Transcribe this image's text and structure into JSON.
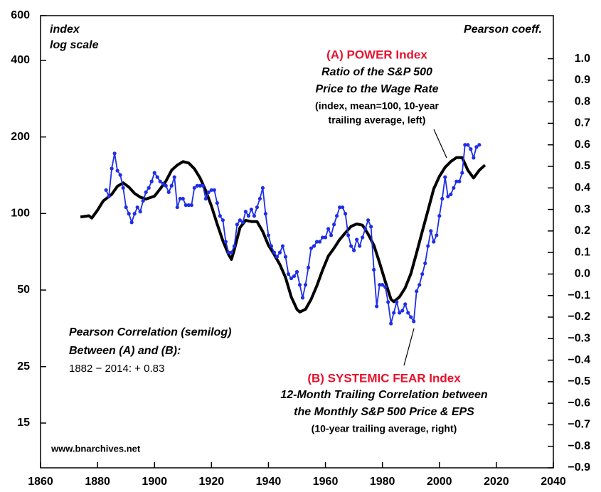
{
  "chart_data": {
    "type": "line",
    "ylabel_lines": [
      "index",
      "log scale"
    ],
    "y2label": "Pearson coeff.",
    "source": "www.bnarchives.net",
    "annotations": [
      {
        "lines": [
          "Ratio of the S&P 500",
          "Price to the Wage Rate",
          "(index, mean=100, 10-year",
          "trailing average, left)"
        ]
      },
      {
        "lines": [
          "12-Month Trailing Correlation between",
          "the Monthly S&P 500 Price & EPS",
          "(10-year trailing average, right)"
        ]
      },
      {
        "lines": [
          "Pearson Correlation (semilog)",
          "Between (A) and (B):",
          "1882 − 2014:  + 0.83"
        ]
      }
    ],
    "xlim": [
      1860,
      2040
    ],
    "xticks": [
      1860,
      1880,
      1900,
      1920,
      1940,
      1960,
      1980,
      2000,
      2020,
      2040
    ],
    "ylim": [
      10,
      600
    ],
    "yscale": "log",
    "yticks": [
      15,
      25,
      50,
      100,
      200,
      400,
      600
    ],
    "y2lim": [
      -0.9,
      1.2
    ],
    "y2ticks": [
      {
        "value": -0.9,
        "label": "−0.9"
      },
      {
        "value": -0.8,
        "label": "−0.8"
      },
      {
        "value": -0.7,
        "label": "−0.7"
      },
      {
        "value": -0.6,
        "label": "−0.6"
      },
      {
        "value": -0.5,
        "label": "−0.5"
      },
      {
        "value": -0.4,
        "label": "−0.4"
      },
      {
        "value": -0.3,
        "label": "−0.3"
      },
      {
        "value": -0.2,
        "label": "−0.2"
      },
      {
        "value": -0.1,
        "label": "−0.1"
      },
      {
        "value": 0,
        "label": "0.0"
      },
      {
        "value": 0.1,
        "label": "0.1"
      },
      {
        "value": 0.2,
        "label": "0.2"
      },
      {
        "value": 0.3,
        "label": "0.3"
      },
      {
        "value": 0.4,
        "label": "0.4"
      },
      {
        "value": 0.5,
        "label": "0.5"
      },
      {
        "value": 0.6,
        "label": "0.6"
      },
      {
        "value": 0.7,
        "label": "0.7"
      },
      {
        "value": 0.8,
        "label": "0.8"
      },
      {
        "value": 0.9,
        "label": "0.9"
      },
      {
        "value": 1.0,
        "label": "1.0"
      }
    ],
    "series": [
      {
        "name": "(A) POWER Index",
        "color": "#000000",
        "axis": "y",
        "x": [
          1874,
          1877,
          1878,
          1880,
          1882,
          1885,
          1887,
          1889,
          1891,
          1893,
          1895,
          1897,
          1900,
          1902,
          1904,
          1906,
          1908,
          1910,
          1912,
          1914,
          1916,
          1918,
          1920,
          1922,
          1924,
          1926,
          1927,
          1928,
          1930,
          1932,
          1934,
          1936,
          1938,
          1940,
          1942,
          1944,
          1946,
          1948,
          1950,
          1951,
          1953,
          1955,
          1957,
          1959,
          1961,
          1963,
          1965,
          1967,
          1969,
          1971,
          1973,
          1975,
          1977,
          1979,
          1981,
          1983,
          1984,
          1986,
          1988,
          1990,
          1992,
          1994,
          1996,
          1998,
          2000,
          2002,
          2004,
          2006,
          2008,
          2010,
          2012,
          2014,
          2016
        ],
        "values": [
          97,
          98,
          96,
          103,
          112,
          119,
          128,
          132,
          127,
          120,
          116,
          114,
          117,
          125,
          134,
          148,
          155,
          160,
          158,
          150,
          138,
          123,
          107,
          91,
          78,
          69,
          66,
          72,
          88,
          94,
          93,
          93,
          85,
          75,
          69,
          63,
          56,
          47,
          42,
          41,
          42,
          46,
          52,
          60,
          68,
          73,
          79,
          84,
          89,
          91,
          90,
          83,
          75,
          64,
          54,
          46,
          45,
          47,
          51,
          58,
          70,
          85,
          103,
          125,
          140,
          152,
          160,
          166,
          166,
          148,
          138,
          148,
          155
        ]
      },
      {
        "name": "(B) SYSTEMIC FEAR Index",
        "color": "#1f2ee6",
        "axis": "y2",
        "x": [
          1883,
          1884,
          1885,
          1886,
          1887,
          1888,
          1889,
          1890,
          1891,
          1892,
          1893,
          1894,
          1895,
          1896,
          1897,
          1898,
          1899,
          1900,
          1901,
          1902,
          1903,
          1904,
          1905,
          1906,
          1907,
          1908,
          1909,
          1910,
          1911,
          1912,
          1913,
          1914,
          1915,
          1916,
          1917,
          1918,
          1919,
          1920,
          1921,
          1922,
          1923,
          1924,
          1925,
          1926,
          1927,
          1928,
          1929,
          1930,
          1931,
          1932,
          1933,
          1934,
          1935,
          1936,
          1937,
          1938,
          1939,
          1940,
          1941,
          1942,
          1943,
          1944,
          1945,
          1946,
          1947,
          1948,
          1949,
          1950,
          1951,
          1952,
          1953,
          1954,
          1955,
          1956,
          1957,
          1958,
          1959,
          1960,
          1961,
          1962,
          1963,
          1964,
          1965,
          1966,
          1967,
          1968,
          1969,
          1970,
          1971,
          1972,
          1973,
          1974,
          1975,
          1976,
          1977,
          1978,
          1979,
          1980,
          1981,
          1982,
          1983,
          1984,
          1985,
          1986,
          1987,
          1988,
          1989,
          1990,
          1991,
          1992,
          1993,
          1994,
          1995,
          1996,
          1997,
          1998,
          1999,
          2000,
          2001,
          2002,
          2003,
          2004,
          2005,
          2006,
          2007,
          2008,
          2009,
          2010,
          2011,
          2012,
          2013,
          2014
        ],
        "values": [
          0.39,
          0.36,
          0.49,
          0.56,
          0.48,
          0.46,
          0.4,
          0.31,
          0.28,
          0.24,
          0.28,
          0.31,
          0.29,
          0.34,
          0.38,
          0.4,
          0.43,
          0.47,
          0.45,
          0.43,
          0.42,
          0.41,
          0.38,
          0.41,
          0.45,
          0.31,
          0.35,
          0.35,
          0.32,
          0.32,
          0.32,
          0.4,
          0.41,
          0.41,
          0.41,
          0.35,
          0.38,
          0.39,
          0.39,
          0.33,
          0.27,
          0.25,
          0.15,
          0.1,
          0.1,
          0.13,
          0.23,
          0.25,
          0.24,
          0.29,
          0.27,
          0.3,
          0.27,
          0.31,
          0.35,
          0.4,
          0.28,
          0.18,
          0.13,
          0.1,
          0.08,
          0.1,
          0.13,
          0.08,
          0.0,
          -0.02,
          -0.01,
          0.01,
          -0.05,
          -0.11,
          -0.05,
          0.03,
          0.12,
          0.13,
          0.15,
          0.15,
          0.17,
          0.17,
          0.21,
          0.18,
          0.23,
          0.27,
          0.31,
          0.31,
          0.28,
          0.18,
          0.13,
          0.11,
          0.16,
          0.13,
          0.17,
          0.21,
          0.25,
          0.22,
          0.02,
          -0.15,
          -0.05,
          -0.05,
          -0.06,
          -0.13,
          -0.23,
          -0.18,
          -0.13,
          -0.18,
          -0.17,
          -0.14,
          -0.18,
          -0.2,
          -0.22,
          -0.08,
          -0.05,
          0.0,
          0.05,
          0.13,
          0.2,
          0.15,
          0.18,
          0.27,
          0.35,
          0.45,
          0.36,
          0.37,
          0.4,
          0.43,
          0.43,
          0.47,
          0.6,
          0.6,
          0.58,
          0.54,
          0.59,
          0.6
        ]
      }
    ]
  }
}
